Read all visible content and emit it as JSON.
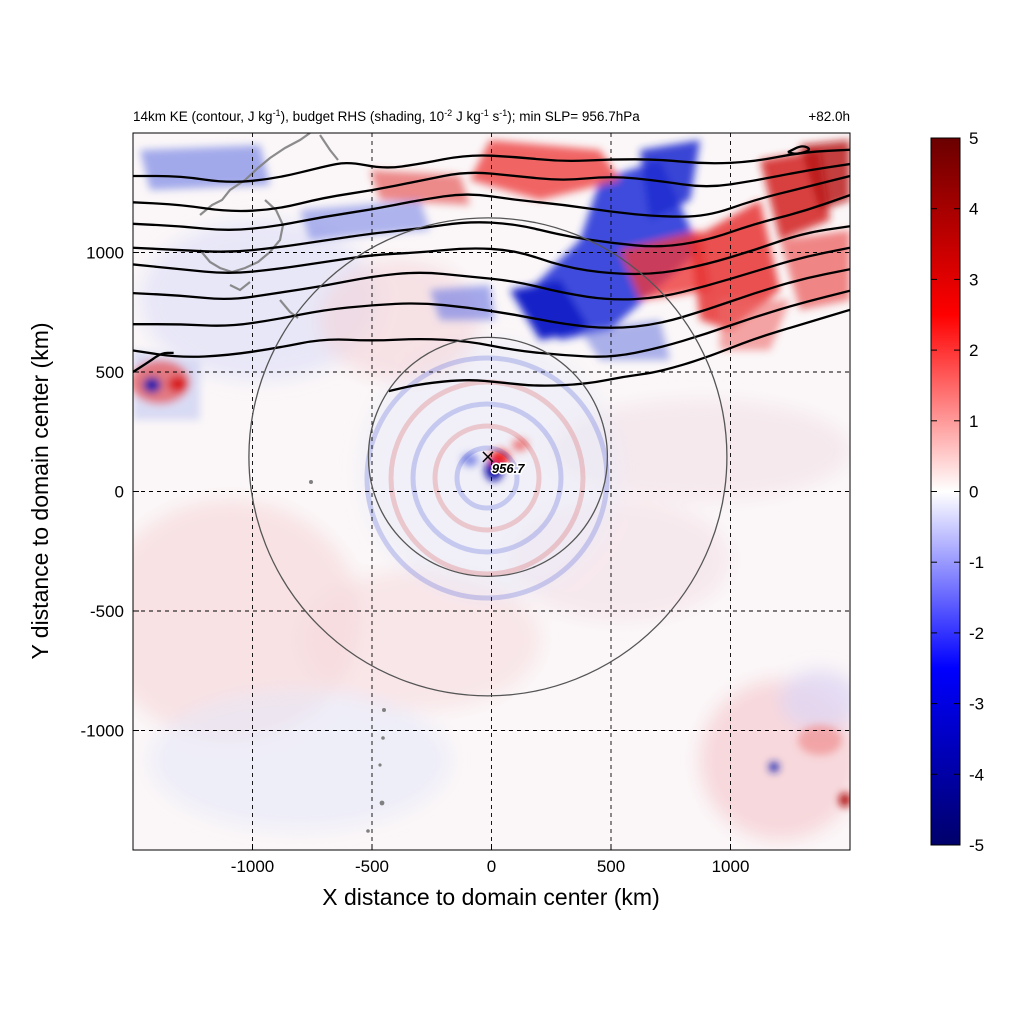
{
  "title": {
    "left_parts": [
      "14km KE (contour, J kg",
      "-1",
      "), budget RHS (shading, 10",
      "-2",
      " J kg",
      "-1",
      " s",
      "-1",
      "); min SLP= 956.7hPa"
    ],
    "right": "+82.0h"
  },
  "chart_data": {
    "type": "heatmap",
    "title": "14km KE (contour, J kg-1), budget RHS (shading, 10-2 J kg-1 s-1); min SLP= 956.7hPa",
    "time_label": "+82.0h",
    "xlabel": "X distance to domain center (km)",
    "ylabel": "Y distance to domain center (km)",
    "xlim": [
      -1500,
      1500
    ],
    "ylim": [
      -1500,
      1500
    ],
    "xticks": [
      -1000,
      -500,
      0,
      500,
      1000
    ],
    "yticks": [
      -1000,
      -500,
      0,
      500,
      1000
    ],
    "grid": "dashed",
    "colorbar": {
      "range": [
        -5,
        5
      ],
      "ticks": [
        5,
        4,
        3,
        2,
        1,
        0,
        -1,
        -2,
        -3,
        -4,
        -5
      ],
      "colors": [
        "#00006a",
        "#0000ff",
        "#ffffff",
        "#ff0000",
        "#6a0000"
      ]
    },
    "center_marker": {
      "x": -15,
      "y": 145,
      "label": "956.7"
    },
    "circles": [
      {
        "center": [
          -15,
          145
        ],
        "radius_km": 500
      },
      {
        "center": [
          -15,
          145
        ],
        "radius_km": 1000
      }
    ],
    "ke_contours_km": [
      [
        [
          -1500,
          1320
        ],
        [
          -1300,
          1320
        ],
        [
          -1100,
          1290
        ],
        [
          -900,
          1310
        ],
        [
          -700,
          1360
        ],
        [
          -600,
          1380
        ],
        [
          -450,
          1350
        ],
        [
          -300,
          1370
        ],
        [
          -100,
          1410
        ],
        [
          100,
          1400
        ],
        [
          300,
          1380
        ],
        [
          500,
          1390
        ],
        [
          700,
          1390
        ],
        [
          900,
          1370
        ],
        [
          1100,
          1380
        ],
        [
          1300,
          1420
        ],
        [
          1500,
          1430
        ]
      ],
      [
        [
          -1500,
          1210
        ],
        [
          -1300,
          1200
        ],
        [
          -1100,
          1170
        ],
        [
          -900,
          1180
        ],
        [
          -700,
          1230
        ],
        [
          -500,
          1260
        ],
        [
          -300,
          1300
        ],
        [
          -100,
          1340
        ],
        [
          100,
          1320
        ],
        [
          300,
          1300
        ],
        [
          500,
          1320
        ],
        [
          700,
          1300
        ],
        [
          900,
          1270
        ],
        [
          1100,
          1300
        ],
        [
          1300,
          1340
        ],
        [
          1500,
          1370
        ]
      ],
      [
        [
          -1500,
          1120
        ],
        [
          -1300,
          1110
        ],
        [
          -1100,
          1090
        ],
        [
          -900,
          1110
        ],
        [
          -700,
          1150
        ],
        [
          -500,
          1180
        ],
        [
          -300,
          1220
        ],
        [
          -100,
          1250
        ],
        [
          100,
          1220
        ],
        [
          300,
          1200
        ],
        [
          500,
          1170
        ],
        [
          700,
          1150
        ],
        [
          900,
          1150
        ],
        [
          1100,
          1220
        ],
        [
          1300,
          1270
        ],
        [
          1500,
          1320
        ]
      ],
      [
        [
          -1500,
          1020
        ],
        [
          -1300,
          1010
        ],
        [
          -1100,
          1000
        ],
        [
          -900,
          1020
        ],
        [
          -700,
          1050
        ],
        [
          -500,
          1080
        ],
        [
          -300,
          1100
        ],
        [
          -100,
          1130
        ],
        [
          100,
          1120
        ],
        [
          300,
          1070
        ],
        [
          500,
          1040
        ],
        [
          700,
          1020
        ],
        [
          900,
          1050
        ],
        [
          1100,
          1120
        ],
        [
          1300,
          1170
        ],
        [
          1500,
          1240
        ]
      ],
      [
        [
          -1500,
          950
        ],
        [
          -1300,
          930
        ],
        [
          -1100,
          910
        ],
        [
          -900,
          930
        ],
        [
          -700,
          960
        ],
        [
          -500,
          990
        ],
        [
          -300,
          1000
        ],
        [
          -100,
          1020
        ],
        [
          100,
          1010
        ],
        [
          300,
          940
        ],
        [
          500,
          910
        ],
        [
          700,
          910
        ],
        [
          900,
          950
        ],
        [
          1100,
          1010
        ],
        [
          1300,
          1080
        ],
        [
          1500,
          1110
        ]
      ],
      [
        [
          -1500,
          830
        ],
        [
          -1300,
          820
        ],
        [
          -1100,
          800
        ],
        [
          -900,
          830
        ],
        [
          -700,
          860
        ],
        [
          -500,
          900
        ],
        [
          -300,
          920
        ],
        [
          -100,
          900
        ],
        [
          100,
          880
        ],
        [
          300,
          830
        ],
        [
          500,
          800
        ],
        [
          700,
          810
        ],
        [
          900,
          860
        ],
        [
          1100,
          920
        ],
        [
          1300,
          980
        ],
        [
          1500,
          1020
        ]
      ],
      [
        [
          -1500,
          700
        ],
        [
          -1300,
          700
        ],
        [
          -1100,
          690
        ],
        [
          -900,
          720
        ],
        [
          -700,
          760
        ],
        [
          -500,
          780
        ],
        [
          -300,
          790
        ],
        [
          -100,
          770
        ],
        [
          100,
          740
        ],
        [
          300,
          700
        ],
        [
          500,
          680
        ],
        [
          700,
          700
        ],
        [
          900,
          760
        ],
        [
          1100,
          830
        ],
        [
          1300,
          890
        ],
        [
          1500,
          930
        ]
      ],
      [
        [
          -1500,
          590
        ],
        [
          -1300,
          560
        ],
        [
          -1100,
          570
        ],
        [
          -900,
          600
        ],
        [
          -700,
          640
        ],
        [
          -500,
          630
        ],
        [
          -300,
          640
        ],
        [
          -100,
          630
        ],
        [
          100,
          590
        ],
        [
          300,
          570
        ],
        [
          500,
          560
        ],
        [
          700,
          600
        ],
        [
          900,
          660
        ],
        [
          1100,
          730
        ],
        [
          1300,
          790
        ],
        [
          1500,
          840
        ]
      ],
      [
        [
          -1500,
          500
        ],
        [
          -1430,
          545
        ],
        [
          -1380,
          580
        ],
        [
          -1330,
          580
        ]
      ],
      [
        [
          -430,
          420
        ],
        [
          -300,
          450
        ],
        [
          -100,
          470
        ],
        [
          50,
          455
        ],
        [
          200,
          440
        ],
        [
          400,
          450
        ],
        [
          550,
          480
        ],
        [
          700,
          500
        ],
        [
          900,
          560
        ],
        [
          1100,
          640
        ],
        [
          1300,
          700
        ],
        [
          1500,
          760
        ]
      ],
      [
        [
          1240,
          1420
        ],
        [
          1300,
          1450
        ],
        [
          1340,
          1430
        ],
        [
          1280,
          1410
        ],
        [
          1240,
          1420
        ]
      ]
    ]
  }
}
